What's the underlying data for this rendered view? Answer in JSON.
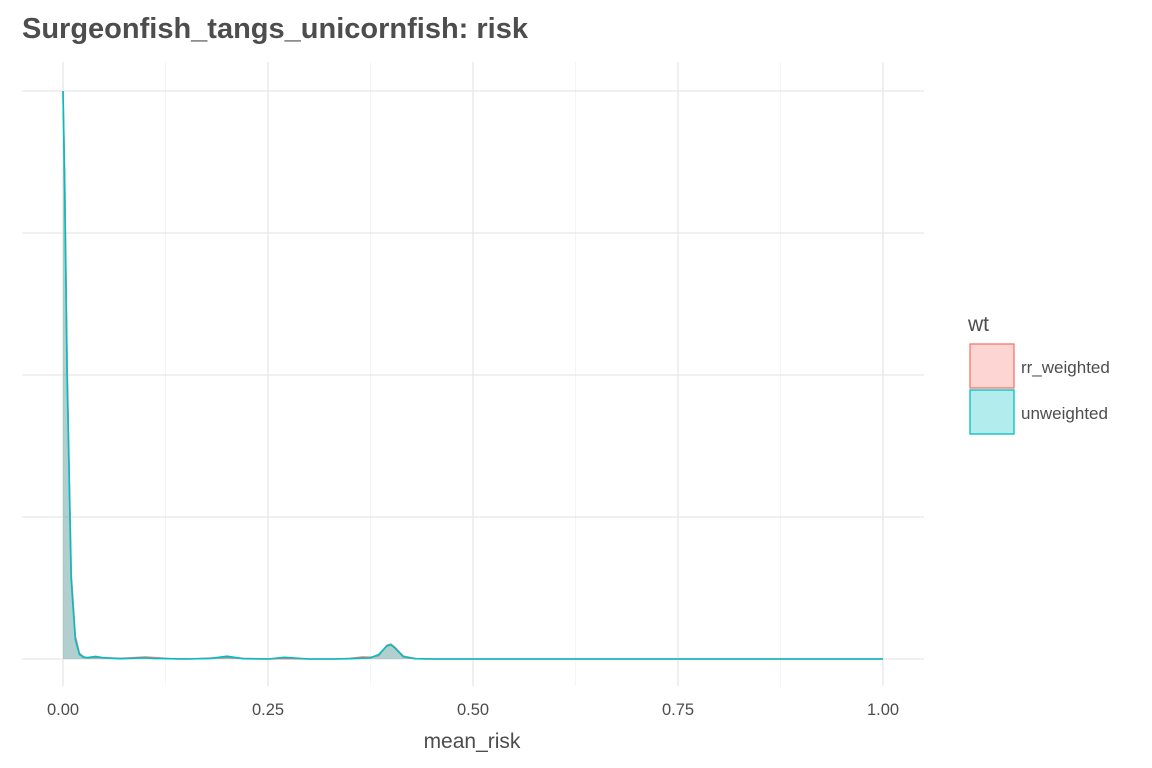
{
  "chart_data": {
    "type": "area",
    "title": "Surgeonfish_tangs_unicornfish: risk",
    "xlabel": "mean_risk",
    "ylabel": "",
    "xlim": [
      -0.05,
      1.05
    ],
    "xticks": [
      0,
      0.25,
      0.5,
      0.75,
      1
    ],
    "xtick_labels": [
      "0.00",
      "0.25",
      "0.50",
      "0.75",
      "1.00"
    ],
    "ylim": [
      0,
      100
    ],
    "ygrid": [
      0,
      25,
      50,
      75,
      100
    ],
    "ytick_labels_shown": false,
    "grid": true,
    "legend": {
      "title": "wt",
      "placement": "right"
    },
    "series": [
      {
        "name": "rr_weighted",
        "fill": "#F8766D",
        "fill_opacity": 0.3,
        "x": [
          0,
          0.002,
          0.005,
          0.01,
          0.015,
          0.02,
          0.025,
          0.03,
          0.04,
          0.05,
          0.07,
          0.09,
          0.1,
          0.11,
          0.13,
          0.15,
          0.18,
          0.2,
          0.22,
          0.25,
          0.27,
          0.3,
          0.33,
          0.35,
          0.365,
          0.375,
          0.385,
          0.395,
          0.4,
          0.405,
          0.415,
          0.43,
          0.45,
          0.5,
          0.6,
          0.75,
          1
        ],
        "y": [
          100,
          85,
          52,
          15,
          4,
          1,
          0.4,
          0.2,
          0.3,
          0.2,
          0.1,
          0.25,
          0.35,
          0.25,
          0.05,
          0,
          0.15,
          0.3,
          0.1,
          0,
          0.1,
          0,
          0,
          0.1,
          0.35,
          0.3,
          0.6,
          2.4,
          2.6,
          2.0,
          0.5,
          0.05,
          0,
          0,
          0,
          0,
          0
        ]
      },
      {
        "name": "unweighted",
        "fill": "#00BFC4",
        "fill_opacity": 0.3,
        "x": [
          0,
          0.002,
          0.005,
          0.01,
          0.015,
          0.02,
          0.025,
          0.03,
          0.04,
          0.05,
          0.07,
          0.09,
          0.1,
          0.11,
          0.13,
          0.15,
          0.18,
          0.2,
          0.22,
          0.25,
          0.27,
          0.3,
          0.33,
          0.35,
          0.365,
          0.375,
          0.385,
          0.395,
          0.4,
          0.405,
          0.415,
          0.43,
          0.45,
          0.5,
          0.6,
          0.75,
          1
        ],
        "y": [
          100,
          84,
          50,
          14,
          3.5,
          0.8,
          0.3,
          0.25,
          0.45,
          0.2,
          0.05,
          0.15,
          0.2,
          0.1,
          0.05,
          0,
          0.1,
          0.5,
          0.05,
          0,
          0.3,
          0,
          0,
          0.05,
          0.15,
          0.2,
          0.8,
          2.3,
          2.5,
          1.9,
          0.4,
          0.05,
          0,
          0,
          0,
          0,
          0
        ]
      }
    ]
  }
}
